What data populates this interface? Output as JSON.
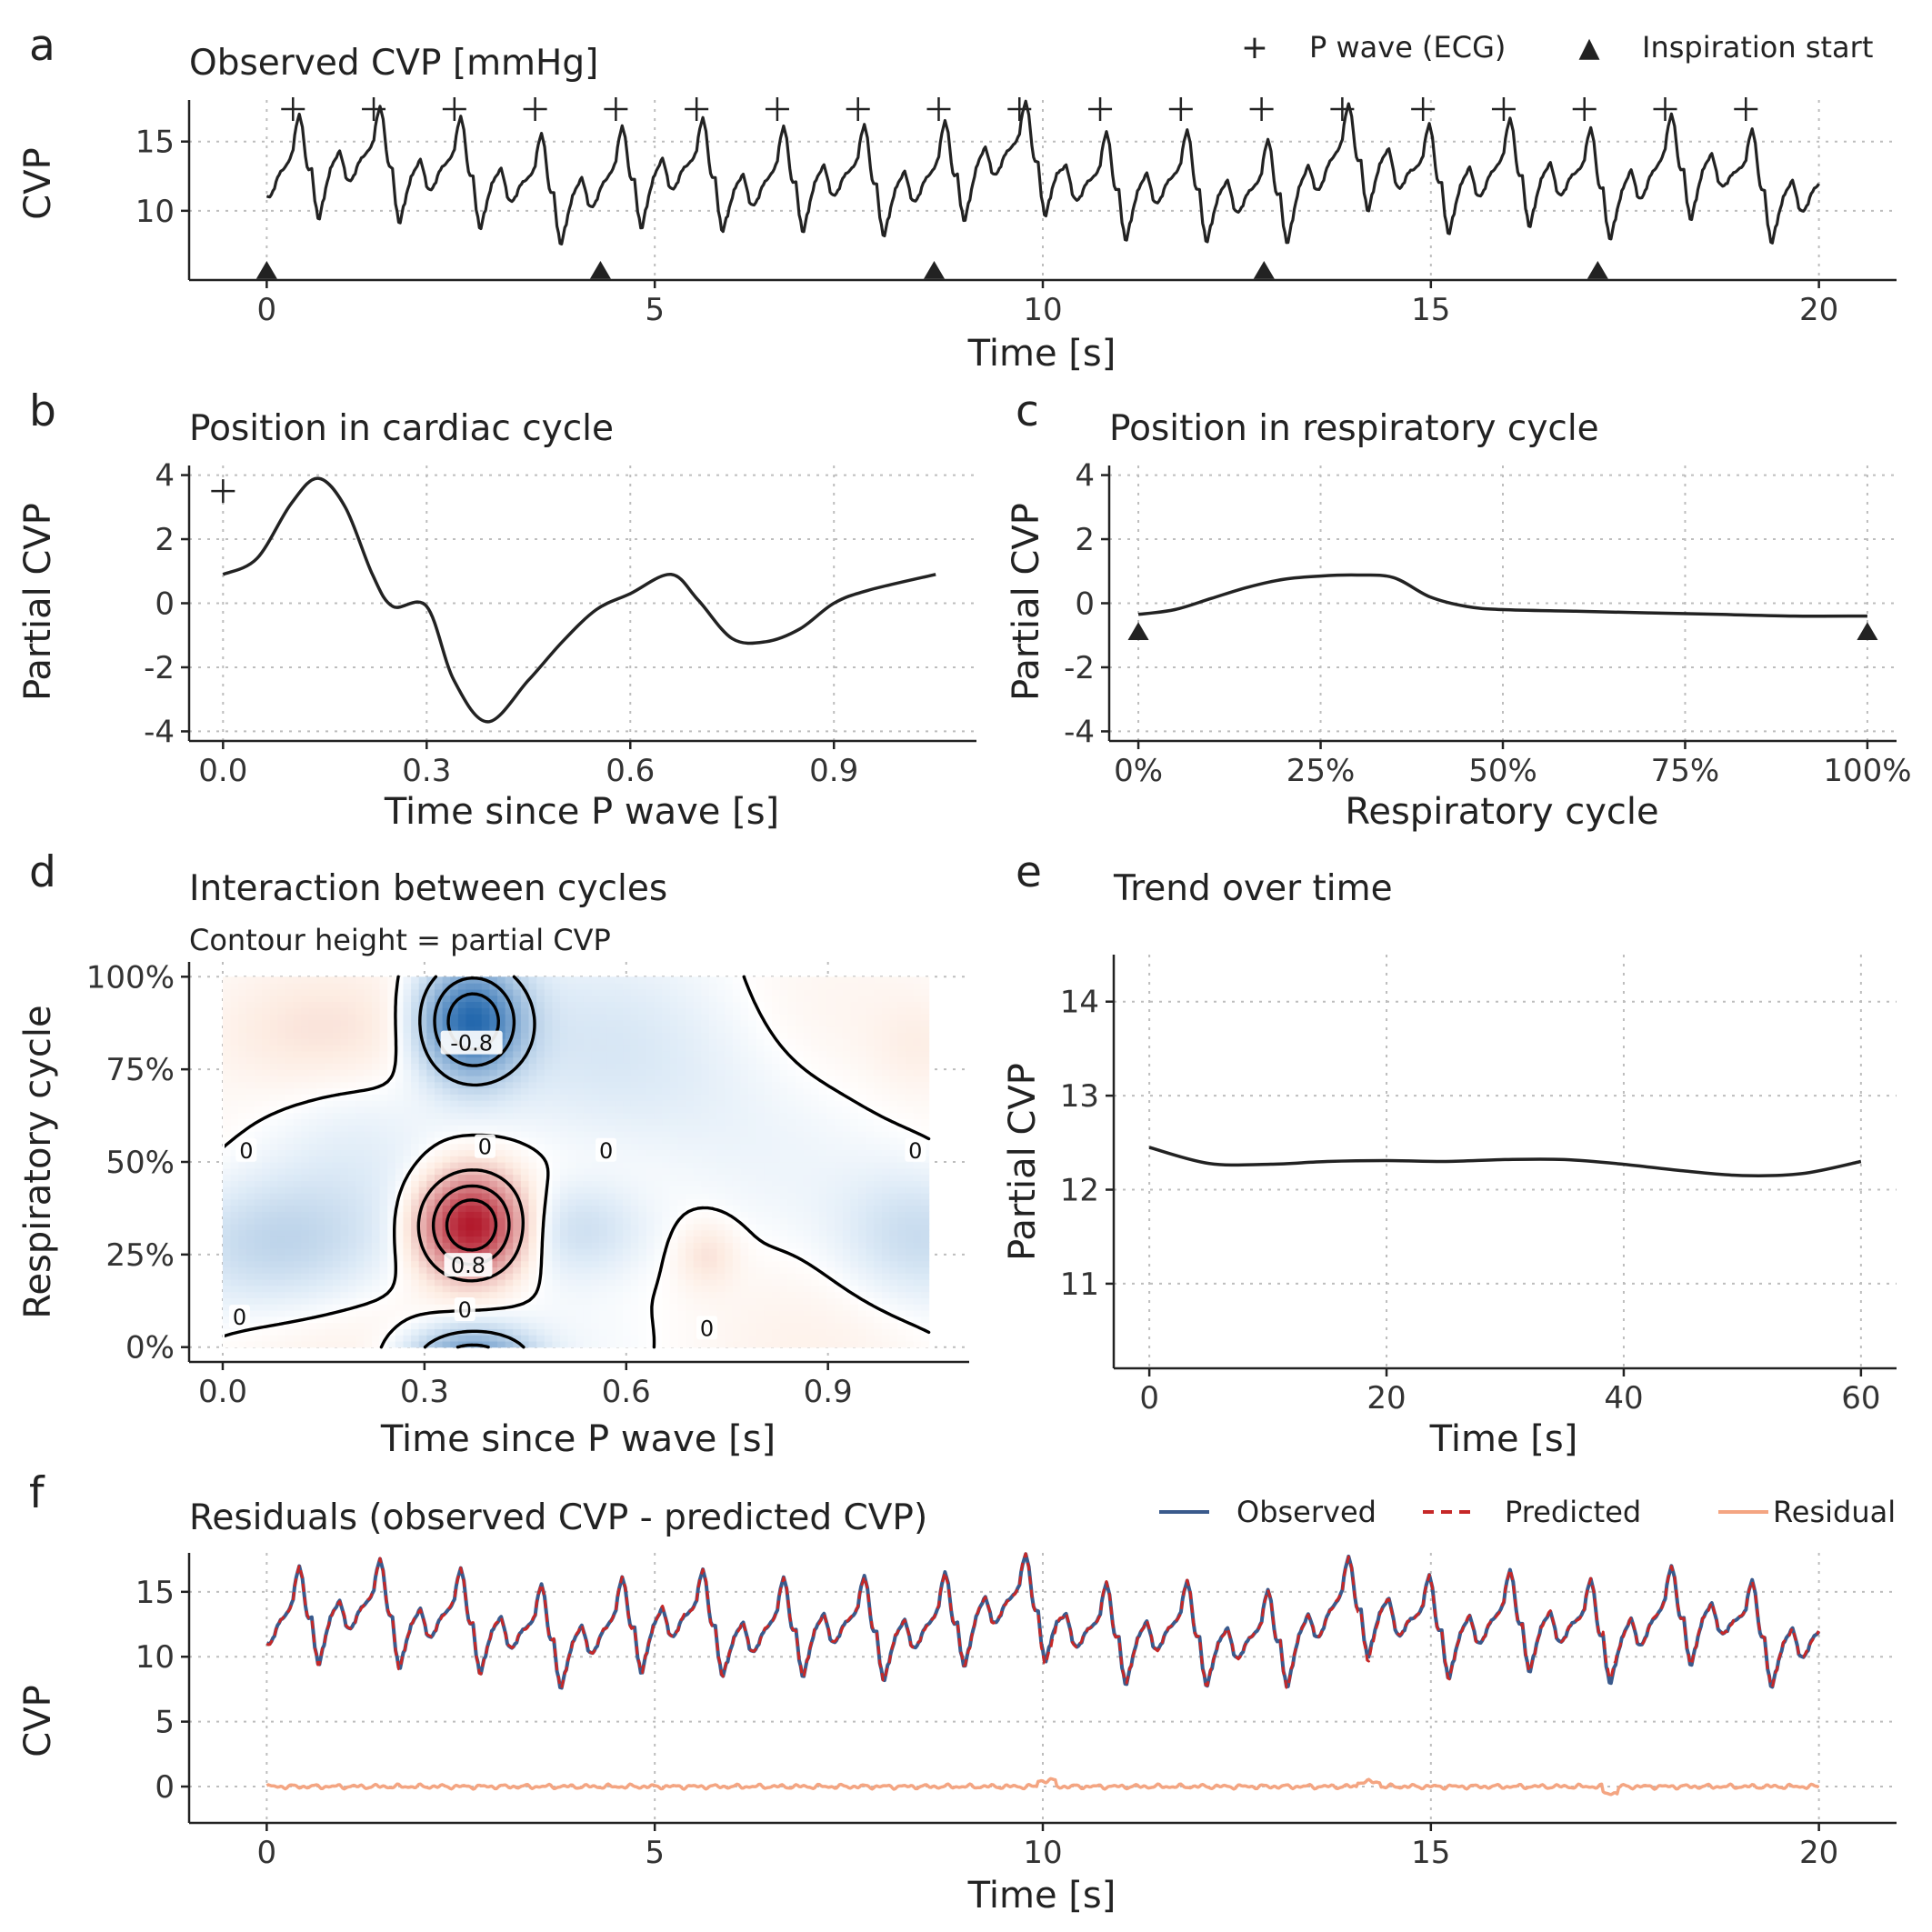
{
  "colors": {
    "line": "#222222",
    "observed": "#3a5a8c",
    "predicted": "#c62828",
    "residual": "#f4a582",
    "neg": "#2166ac",
    "pos": "#b2182b"
  },
  "panels": {
    "a": {
      "tag": "a",
      "title": "Observed CVP [mmHg]",
      "xlabel": "Time [s]",
      "ylabel": "CVP",
      "legend": [
        {
          "symbol": "+",
          "label": "P wave (ECG)"
        },
        {
          "symbol": "▲",
          "label": "Inspiration start"
        }
      ]
    },
    "b": {
      "tag": "b",
      "title": "Position in cardiac cycle",
      "xlabel": "Time since P wave [s]",
      "ylabel": "Partial CVP"
    },
    "c": {
      "tag": "c",
      "title": "Position in respiratory cycle",
      "xlabel": "Respiratory cycle",
      "ylabel": "Partial CVP"
    },
    "d": {
      "tag": "d",
      "title": "Interaction between cycles",
      "subtitle": "Contour height = partial CVP",
      "xlabel": "Time since P wave [s]",
      "ylabel": "Respiratory cycle"
    },
    "e": {
      "tag": "e",
      "title": "Trend over time",
      "xlabel": "Time [s]",
      "ylabel": "Partial CVP"
    },
    "f": {
      "tag": "f",
      "title": "Residuals (observed CVP - predicted CVP)",
      "xlabel": "Time [s]",
      "ylabel": "CVP",
      "legend": [
        {
          "label": "Observed"
        },
        {
          "label": "Predicted"
        },
        {
          "label": "Residual"
        }
      ]
    }
  },
  "chart_data": [
    {
      "id": "a",
      "type": "line",
      "xlim": [
        -1,
        21
      ],
      "ylim": [
        5,
        18
      ],
      "xticks": [
        0,
        5,
        10,
        15,
        20
      ],
      "xtick_labels": [
        "0",
        "5",
        "10",
        "15",
        "20"
      ],
      "yticks": [
        10,
        15
      ],
      "ytick_labels": [
        "10",
        "15"
      ],
      "series": [
        {
          "name": "CVP",
          "cardiac_period_s": 1.04,
          "respiratory_period_s": 4.3,
          "mean": 12.3,
          "t_start": 0,
          "t_end": 20
        }
      ],
      "p_wave_times": [
        0.28,
        1.32,
        2.36,
        3.4,
        4.44,
        5.48,
        6.52,
        7.56,
        8.6,
        9.64,
        10.68,
        11.72,
        12.76,
        13.8,
        14.84,
        15.88,
        16.92,
        17.96,
        19.0
      ],
      "inspiration_times": [
        0,
        4.3,
        8.6,
        12.85,
        17.15
      ]
    },
    {
      "id": "b",
      "type": "line",
      "xlim": [
        -0.05,
        1.11
      ],
      "ylim": [
        -4.3,
        4.3
      ],
      "xticks": [
        0,
        0.3,
        0.6,
        0.9
      ],
      "xtick_labels": [
        "0.0",
        "0.3",
        "0.6",
        "0.9"
      ],
      "yticks": [
        -4,
        -2,
        0,
        2,
        4
      ],
      "ytick_labels": [
        "-4",
        "-2",
        "0",
        "2",
        "4"
      ],
      "x": [
        0,
        0.05,
        0.1,
        0.14,
        0.18,
        0.22,
        0.25,
        0.3,
        0.34,
        0.39,
        0.45,
        0.5,
        0.55,
        0.6,
        0.66,
        0.7,
        0.75,
        0.8,
        0.85,
        0.9,
        0.95,
        1.05
      ],
      "y": [
        0.9,
        1.4,
        3.1,
        3.9,
        3.0,
        0.9,
        -0.1,
        -0.1,
        -2.4,
        -3.7,
        -2.4,
        -1.2,
        -0.2,
        0.3,
        0.9,
        0.1,
        -1.1,
        -1.2,
        -0.8,
        0,
        0.4,
        0.9
      ],
      "marker": {
        "symbol": "+",
        "x": 0,
        "y": 3.5
      }
    },
    {
      "id": "c",
      "type": "line",
      "xlim": [
        -0.04,
        1.04
      ],
      "ylim": [
        -4.3,
        4.3
      ],
      "xticks": [
        0,
        0.25,
        0.5,
        0.75,
        1
      ],
      "xtick_labels": [
        "0%",
        "25%",
        "50%",
        "75%",
        "100%"
      ],
      "yticks": [
        -4,
        -2,
        0,
        2,
        4
      ],
      "ytick_labels": [
        "-4",
        "-2",
        "0",
        "2",
        "4"
      ],
      "x": [
        0,
        0.05,
        0.1,
        0.15,
        0.2,
        0.25,
        0.3,
        0.35,
        0.4,
        0.45,
        0.5,
        0.6,
        0.7,
        0.8,
        0.9,
        1
      ],
      "y": [
        -0.35,
        -0.2,
        0.15,
        0.5,
        0.75,
        0.85,
        0.88,
        0.8,
        0.2,
        -0.1,
        -0.2,
        -0.25,
        -0.3,
        -0.35,
        -0.4,
        -0.4
      ],
      "markers": [
        {
          "symbol": "▲",
          "x": 0,
          "y": -0.9
        },
        {
          "symbol": "▲",
          "x": 1,
          "y": -0.9
        }
      ]
    },
    {
      "id": "d",
      "type": "heatmap",
      "xlim": [
        -0.05,
        1.11
      ],
      "ylim": [
        -0.04,
        1.04
      ],
      "xticks": [
        0,
        0.3,
        0.6,
        0.9
      ],
      "xtick_labels": [
        "0.0",
        "0.3",
        "0.6",
        "0.9"
      ],
      "yticks": [
        0,
        0.25,
        0.5,
        0.75,
        1
      ],
      "ytick_labels": [
        "0%",
        "25%",
        "50%",
        "75%",
        "100%"
      ],
      "x_range": [
        0,
        1.05
      ],
      "y_range": [
        0,
        1
      ],
      "contour_labels": [
        {
          "text": "-0.8",
          "x": 0.37,
          "y": 0.82
        },
        {
          "text": "0.8",
          "x": 0.365,
          "y": 0.22
        },
        {
          "text": "0",
          "x": 0.035,
          "y": 0.53
        },
        {
          "text": "0",
          "x": 0.39,
          "y": 0.54
        },
        {
          "text": "0",
          "x": 0.57,
          "y": 0.53
        },
        {
          "text": "0",
          "x": 1.03,
          "y": 0.53
        },
        {
          "text": "0",
          "x": 0.025,
          "y": 0.08
        },
        {
          "text": "0",
          "x": 0.36,
          "y": 0.1
        },
        {
          "text": "0",
          "x": 0.72,
          "y": 0.05
        }
      ]
    },
    {
      "id": "e",
      "type": "line",
      "xlim": [
        -3,
        63
      ],
      "ylim": [
        10.1,
        14.5
      ],
      "xticks": [
        0,
        20,
        40,
        60
      ],
      "xtick_labels": [
        "0",
        "20",
        "40",
        "60"
      ],
      "yticks": [
        11,
        12,
        13,
        14
      ],
      "ytick_labels": [
        "11",
        "12",
        "13",
        "14"
      ],
      "x": [
        0,
        5,
        10,
        15,
        20,
        25,
        30,
        35,
        40,
        45,
        50,
        55,
        60
      ],
      "y": [
        12.45,
        12.28,
        12.27,
        12.3,
        12.31,
        12.3,
        12.32,
        12.32,
        12.27,
        12.2,
        12.15,
        12.17,
        12.3
      ]
    },
    {
      "id": "f",
      "type": "line",
      "xlim": [
        -1,
        21
      ],
      "ylim": [
        -2.8,
        18
      ],
      "xticks": [
        0,
        5,
        10,
        15,
        20
      ],
      "xtick_labels": [
        "0",
        "5",
        "10",
        "15",
        "20"
      ],
      "yticks": [
        0,
        5,
        10,
        15
      ],
      "ytick_labels": [
        "0",
        "5",
        "10",
        "15"
      ],
      "series": [
        {
          "name": "Observed"
        },
        {
          "name": "Predicted"
        },
        {
          "name": "Residual",
          "mean": 0
        }
      ]
    }
  ]
}
